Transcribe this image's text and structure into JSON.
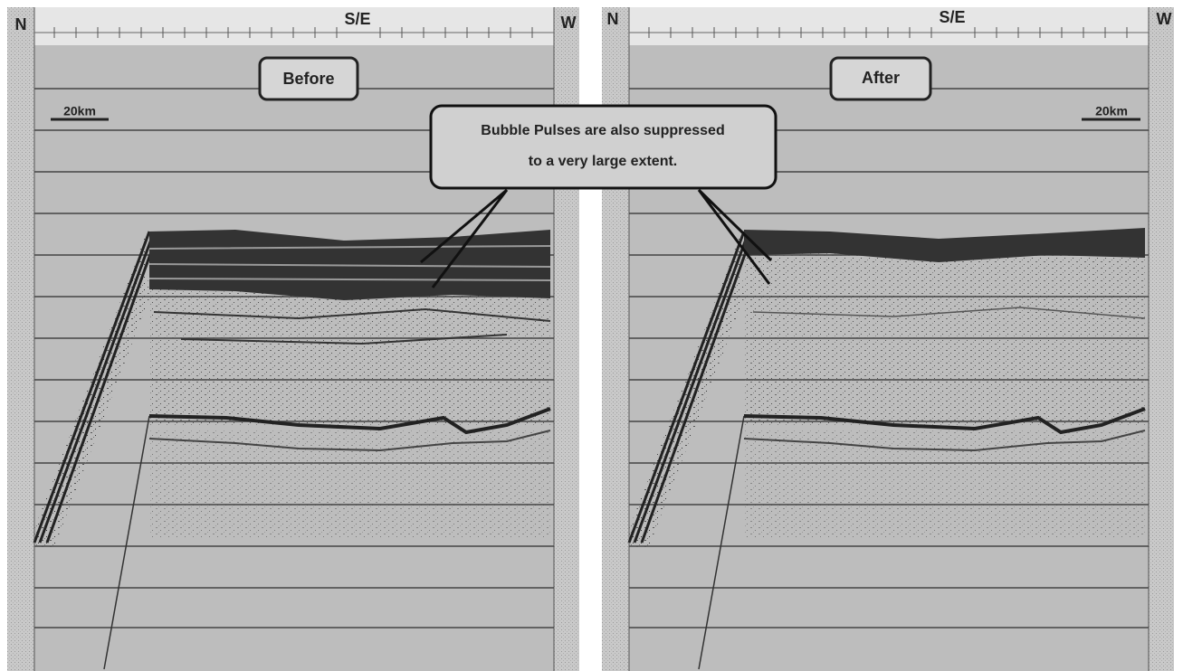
{
  "panels": [
    {
      "left_label": "N",
      "top_label": "S/E",
      "right_label": "W",
      "title": "Before",
      "scale": "20km"
    },
    {
      "left_label": "N",
      "top_label": "S/E",
      "right_label": "W",
      "title": "After",
      "scale": "20km"
    }
  ],
  "callout": {
    "lines": [
      "Bubble Pulses are also suppressed",
      "to a very large extent."
    ]
  }
}
